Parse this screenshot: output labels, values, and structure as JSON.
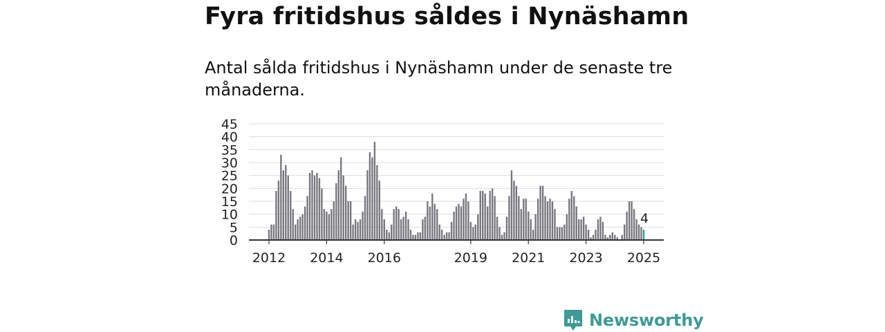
{
  "title": "Fyra fritidshus såldes i Nynäshamn",
  "subtitle": "Antal sålda fritidshus i Nynäshamn under de senaste tre månaderna.",
  "brand": {
    "name": "Newsworthy",
    "icon": "newsworthy-logo-icon",
    "color": "#3d9a96"
  },
  "colors": {
    "bars": "#76767c",
    "highlight": "#2a9d8f",
    "grid": "#dddddd"
  },
  "chart_data": {
    "type": "bar",
    "title": "",
    "xlabel": "",
    "ylabel": "",
    "ylim": [
      0,
      45
    ],
    "yticks": [
      0,
      5,
      10,
      15,
      20,
      25,
      30,
      35,
      40,
      45
    ],
    "xticks": [
      "2012",
      "2014",
      "2016",
      "2019",
      "2021",
      "2023",
      "2025"
    ],
    "grid": true,
    "start": "2012-01",
    "end": "2025-01",
    "highlight_last": true,
    "last_label": "4",
    "values": [
      4,
      6,
      6,
      19,
      23,
      33,
      27,
      29,
      25,
      19,
      12,
      6,
      8,
      9,
      10,
      13,
      17,
      26,
      27,
      25,
      26,
      24,
      20,
      12,
      11,
      10,
      12,
      15,
      22,
      27,
      32,
      25,
      21,
      15,
      15,
      6,
      8,
      7,
      8,
      11,
      17,
      27,
      34,
      32,
      38,
      29,
      23,
      12,
      8,
      4,
      3,
      6,
      12,
      13,
      12,
      8,
      9,
      11,
      8,
      4,
      2,
      2,
      3,
      3,
      8,
      9,
      15,
      13,
      18,
      14,
      12,
      6,
      4,
      2,
      3,
      3,
      7,
      11,
      13,
      14,
      13,
      16,
      18,
      15,
      7,
      5,
      6,
      10,
      19,
      19,
      18,
      13,
      19,
      20,
      17,
      9,
      5,
      2,
      3,
      9,
      17,
      27,
      23,
      21,
      17,
      12,
      16,
      16,
      11,
      8,
      4,
      10,
      16,
      21,
      21,
      17,
      15,
      16,
      15,
      12,
      5,
      5,
      5,
      6,
      10,
      16,
      19,
      17,
      13,
      8,
      8,
      9,
      6,
      4,
      1,
      2,
      4,
      8,
      9,
      7,
      2,
      1,
      2,
      3,
      2,
      1,
      0,
      2,
      6,
      11,
      15,
      15,
      12,
      8,
      6,
      5,
      4
    ]
  }
}
